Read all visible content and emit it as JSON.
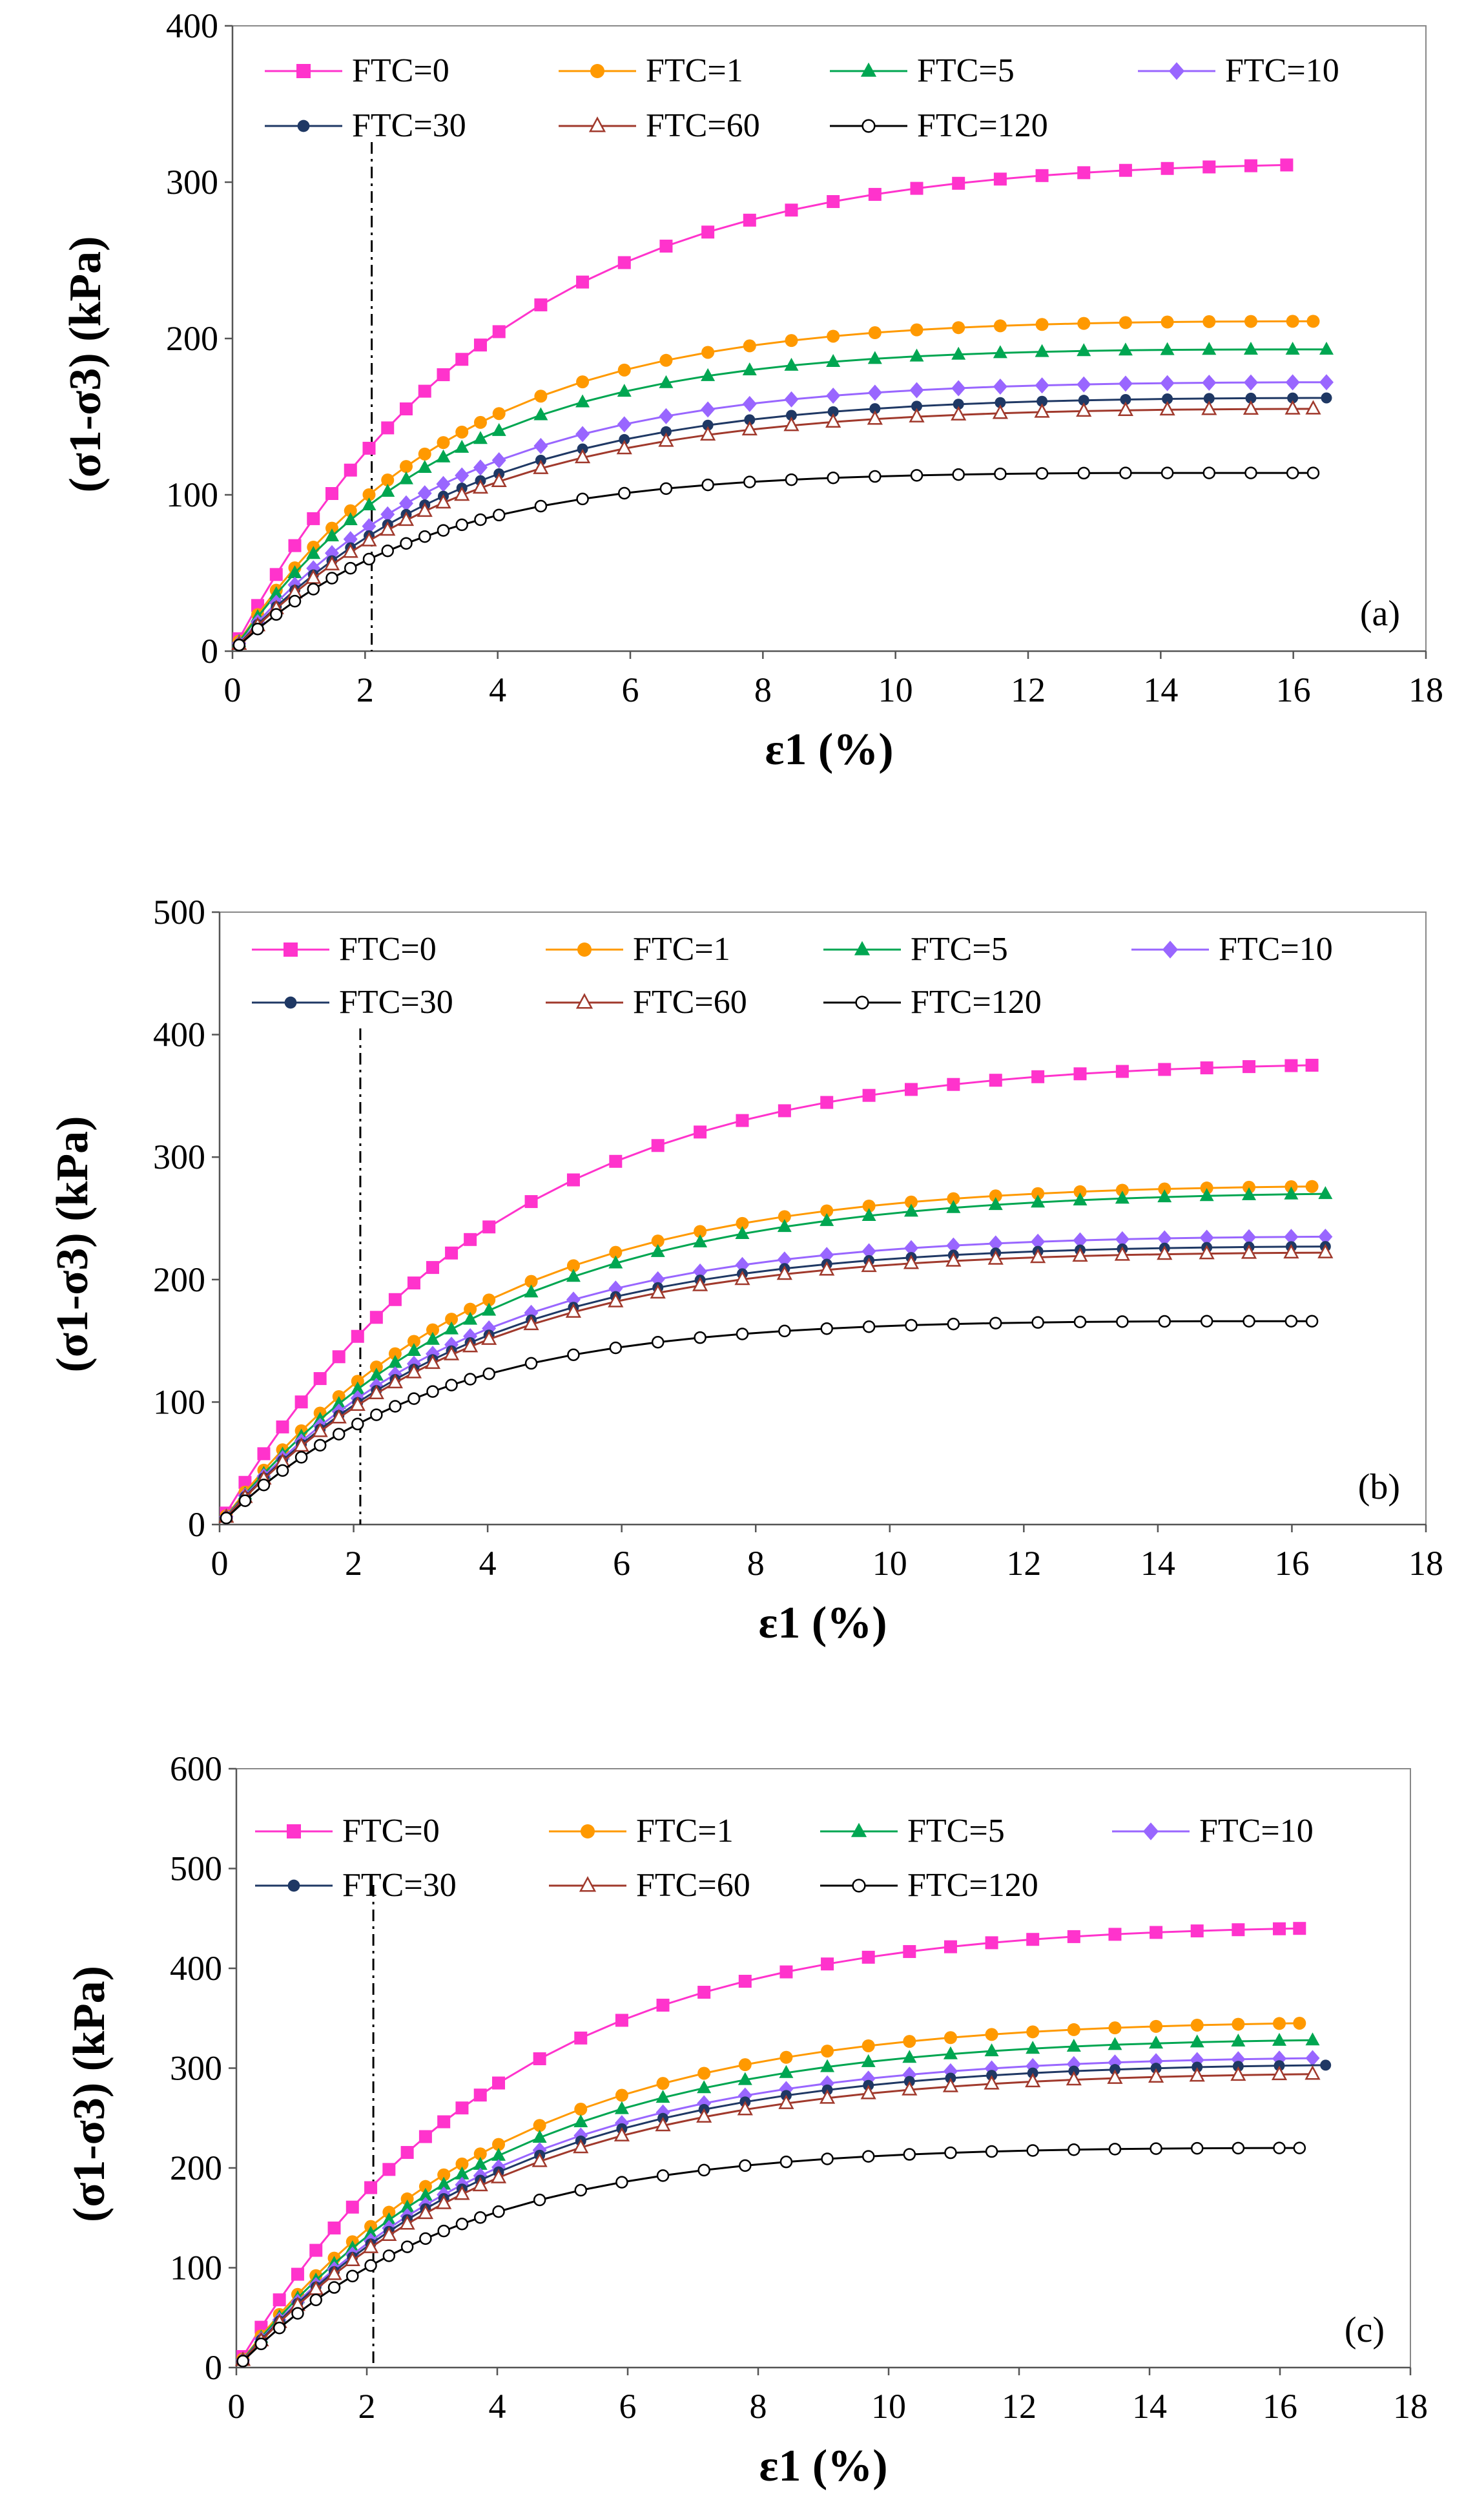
{
  "chart_data": [
    {
      "type": "line",
      "panel_label": "(a)",
      "xlabel": "ε1 (%)",
      "ylabel": "(σ1-σ3) (kPa)",
      "xlim": [
        0,
        18
      ],
      "ylim": [
        0,
        400
      ],
      "xticks": [
        0,
        2,
        4,
        6,
        8,
        10,
        12,
        14,
        16,
        18
      ],
      "yticks": [
        0,
        100,
        200,
        300,
        400
      ],
      "reference_line_x": 2.1,
      "legend": "top",
      "series": [
        {
          "name": "FTC=0",
          "color": "#ff33cc",
          "marker": "square",
          "final": [
            15.9,
            311
          ],
          "k": 4.1,
          "b": 0.7
        },
        {
          "name": "FTC=1",
          "color": "#ff9900",
          "marker": "circle",
          "final": [
            16.3,
            211
          ],
          "k": 3.4,
          "b": 0.6
        },
        {
          "name": "FTC=5",
          "color": "#00a651",
          "marker": "triangle",
          "final": [
            16.5,
            193
          ],
          "k": 3.3,
          "b": 0.6
        },
        {
          "name": "FTC=10",
          "color": "#9966ff",
          "marker": "diamond",
          "final": [
            16.5,
            172
          ],
          "k": 3.5,
          "b": 0.6
        },
        {
          "name": "FTC=30",
          "color": "#1f3864",
          "marker": "dot",
          "final": [
            16.5,
            162
          ],
          "k": 3.6,
          "b": 0.6
        },
        {
          "name": "FTC=60",
          "color": "#a0392c",
          "marker": "open-triangle",
          "final": [
            16.3,
            155
          ],
          "k": 3.6,
          "b": 0.6
        },
        {
          "name": "FTC=120",
          "color": "#000000",
          "marker": "open-circle",
          "final": [
            16.3,
            114
          ],
          "k": 3.0,
          "b": 0.5
        }
      ]
    },
    {
      "type": "line",
      "panel_label": "(b)",
      "xlabel": "ε1 (%)",
      "ylabel": "(σ1-σ3) (kPa)",
      "xlim": [
        0,
        18
      ],
      "ylim": [
        0,
        500
      ],
      "xticks": [
        0,
        2,
        4,
        6,
        8,
        10,
        12,
        14,
        16,
        18
      ],
      "yticks": [
        0,
        100,
        200,
        300,
        400,
        500
      ],
      "reference_line_x": 2.1,
      "legend": "top",
      "series": [
        {
          "name": "FTC=0",
          "color": "#ff33cc",
          "marker": "square",
          "final": [
            16.3,
            375
          ],
          "k": 4.2,
          "b": 0.7
        },
        {
          "name": "FTC=1",
          "color": "#ff9900",
          "marker": "circle",
          "final": [
            16.3,
            276
          ],
          "k": 4.0,
          "b": 0.6
        },
        {
          "name": "FTC=5",
          "color": "#00a651",
          "marker": "triangle",
          "final": [
            16.5,
            270
          ],
          "k": 4.2,
          "b": 0.6
        },
        {
          "name": "FTC=10",
          "color": "#9966ff",
          "marker": "diamond",
          "final": [
            16.5,
            235
          ],
          "k": 3.8,
          "b": 0.6
        },
        {
          "name": "FTC=30",
          "color": "#1f3864",
          "marker": "dot",
          "final": [
            16.5,
            227
          ],
          "k": 3.8,
          "b": 0.6
        },
        {
          "name": "FTC=60",
          "color": "#a0392c",
          "marker": "open-triangle",
          "final": [
            16.5,
            222
          ],
          "k": 3.8,
          "b": 0.6
        },
        {
          "name": "FTC=120",
          "color": "#000000",
          "marker": "open-circle",
          "final": [
            16.3,
            166
          ],
          "k": 3.2,
          "b": 0.5
        }
      ]
    },
    {
      "type": "line",
      "panel_label": "(c)",
      "xlabel": "ε1 (%)",
      "ylabel": "(σ1-σ3) (kPa)",
      "xlim": [
        0,
        18
      ],
      "ylim": [
        0,
        600
      ],
      "xticks": [
        0,
        2,
        4,
        6,
        8,
        10,
        12,
        14,
        16,
        18
      ],
      "yticks": [
        0,
        100,
        200,
        300,
        400,
        500,
        600
      ],
      "reference_line_x": 2.1,
      "legend": "top",
      "series": [
        {
          "name": "FTC=0",
          "color": "#ff33cc",
          "marker": "square",
          "final": [
            16.3,
            440
          ],
          "k": 4.2,
          "b": 0.7
        },
        {
          "name": "FTC=1",
          "color": "#ff9900",
          "marker": "circle",
          "final": [
            16.3,
            345
          ],
          "k": 4.2,
          "b": 0.6
        },
        {
          "name": "FTC=5",
          "color": "#00a651",
          "marker": "triangle",
          "final": [
            16.5,
            328
          ],
          "k": 4.2,
          "b": 0.6
        },
        {
          "name": "FTC=10",
          "color": "#9966ff",
          "marker": "diamond",
          "final": [
            16.5,
            310
          ],
          "k": 4.2,
          "b": 0.6
        },
        {
          "name": "FTC=30",
          "color": "#1f3864",
          "marker": "dot",
          "final": [
            16.7,
            303
          ],
          "k": 4.2,
          "b": 0.6
        },
        {
          "name": "FTC=60",
          "color": "#a0392c",
          "marker": "open-triangle",
          "final": [
            16.5,
            294
          ],
          "k": 4.2,
          "b": 0.6
        },
        {
          "name": "FTC=120",
          "color": "#000000",
          "marker": "open-circle",
          "final": [
            16.3,
            220
          ],
          "k": 3.5,
          "b": 0.5
        }
      ]
    }
  ]
}
